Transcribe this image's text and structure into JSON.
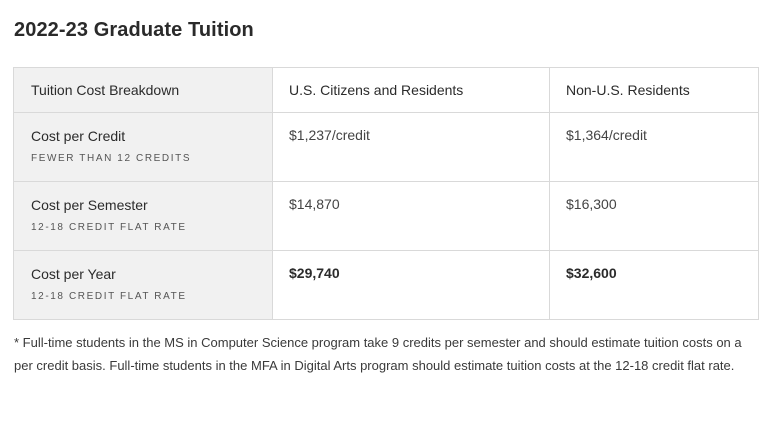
{
  "title": "2022-23 Graduate Tuition",
  "table": {
    "headers": [
      "Tuition Cost Breakdown",
      "U.S. Citizens and Residents",
      "Non-U.S. Residents"
    ],
    "rows": [
      {
        "label": "Cost per Credit",
        "sublabel": "FEWER THAN 12 CREDITS",
        "us": "$1,237/credit",
        "non_us": "$1,364/credit"
      },
      {
        "label": "Cost per Semester",
        "sublabel": "12-18 CREDIT FLAT RATE",
        "us": "$14,870",
        "non_us": "$16,300"
      },
      {
        "label": "Cost per Year",
        "sublabel": "12-18 CREDIT FLAT RATE",
        "us": "$29,740",
        "non_us": "$32,600"
      }
    ]
  },
  "footnote": "* Full-time students in the MS in Computer Science program take 9 credits per semester and should estimate tuition costs on a per credit basis. Full-time students in the MFA in Digital Arts program should estimate tuition costs at the 12-18 credit flat rate."
}
